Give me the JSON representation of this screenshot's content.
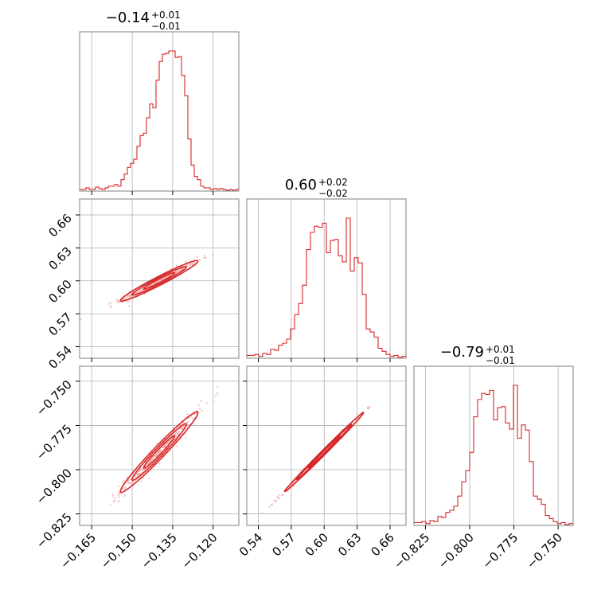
{
  "colors": {
    "line": "#d62728",
    "scatter": "#f4a6a6",
    "grid": "#b0b0b0",
    "frame": "#808080"
  },
  "chart_data": {
    "type": "corner",
    "grid": true,
    "parameters": [
      {
        "name": "",
        "title": {
          "main": "−0.14",
          "plus": "+0.01",
          "minus": "−0.01"
        },
        "range": [
          -0.1695,
          -0.1105
        ],
        "ticks": [
          -0.165,
          -0.15,
          -0.135,
          -0.12
        ],
        "tick_labels": [
          "−0.165",
          "−0.150",
          "−0.135",
          "−0.120"
        ],
        "median": -0.14,
        "hist_counts": [
          1,
          1,
          3,
          1,
          1,
          4,
          2,
          1,
          3,
          5,
          5,
          7,
          5,
          13,
          20,
          28,
          33,
          38,
          54,
          67,
          70,
          89,
          106,
          101,
          135,
          158,
          167,
          168,
          171,
          171,
          163,
          164,
          141,
          116,
          63,
          31,
          17,
          13,
          5,
          3,
          3,
          1,
          2,
          1,
          2,
          1,
          0,
          1,
          0,
          1
        ]
      },
      {
        "name": "",
        "title": {
          "main": "0.60",
          "plus": "+0.02",
          "minus": "−0.02"
        },
        "range": [
          0.5295,
          0.6745
        ],
        "ticks": [
          0.54,
          0.57,
          0.6,
          0.63,
          0.66
        ],
        "tick_labels": [
          "0.54",
          "0.57",
          "0.60",
          "0.63",
          "0.66"
        ],
        "median": 0.6,
        "hist_counts": [
          2,
          2,
          3,
          1,
          4,
          3,
          8,
          7,
          12,
          14,
          18,
          28,
          42,
          53,
          71,
          106,
          123,
          129,
          128,
          132,
          103,
          115,
          116,
          100,
          94,
          137,
          85,
          98,
          93,
          62,
          28,
          25,
          20,
          9,
          6,
          3,
          1,
          2,
          0,
          1
        ]
      },
      {
        "name": "",
        "title": {
          "main": "−0.79",
          "plus": "+0.01",
          "minus": "−0.01"
        },
        "range": [
          -0.8315,
          -0.7415
        ],
        "ticks": [
          -0.825,
          -0.8,
          -0.775,
          -0.75
        ],
        "tick_labels": [
          "−0.825",
          "−0.800",
          "−0.775",
          "−0.750"
        ],
        "median": -0.79,
        "hist_counts": [
          2,
          2,
          3,
          1,
          4,
          3,
          8,
          7,
          12,
          14,
          18,
          28,
          42,
          53,
          71,
          106,
          123,
          129,
          128,
          132,
          103,
          115,
          116,
          100,
          94,
          137,
          85,
          98,
          93,
          62,
          28,
          25,
          20,
          9,
          6,
          3,
          1,
          2,
          0,
          1
        ]
      }
    ],
    "pairs": [
      {
        "x": 0,
        "y": 1,
        "mean": [
          -0.14,
          0.6
        ],
        "slope": 1.25,
        "sd_x": 0.0072,
        "sd_perp": 0.0022
      },
      {
        "x": 0,
        "y": 2,
        "mean": [
          -0.14,
          -0.79
        ],
        "slope": 1.55,
        "sd_x": 0.0072,
        "sd_perp": 0.0024
      },
      {
        "x": 1,
        "y": 2,
        "mean": [
          0.6,
          -0.79
        ],
        "slope": 0.62,
        "sd_x": 0.018,
        "sd_perp": 0.0009
      }
    ]
  }
}
